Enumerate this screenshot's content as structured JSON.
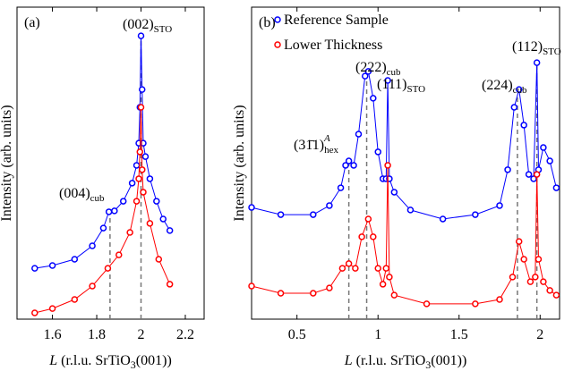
{
  "chart_data": [
    {
      "type": "line",
      "panel_label": "(a)",
      "ylabel": "Intensity (arb. units)",
      "xlabel": {
        "var": "L",
        "text": " (r.l.u. SrTiO",
        "sub": "3",
        "rest": "(001))"
      },
      "xlim": [
        1.44,
        2.285
      ],
      "ylim": [
        0,
        100
      ],
      "xticks": [
        1.6,
        1.8,
        2,
        2.2
      ],
      "series": [
        {
          "color": "#0000ff",
          "x": [
            1.52,
            1.6,
            1.7,
            1.78,
            1.83,
            1.855,
            1.88,
            1.92,
            1.96,
            1.98,
            1.99,
            1.995,
            2.0,
            2.005,
            2.01,
            2.02,
            2.04,
            2.07,
            2.1,
            2.13
          ],
          "values": [
            16.3,
            17.2,
            19.2,
            23.5,
            29.2,
            34.4,
            34.7,
            37.8,
            43.6,
            49.3,
            56.4,
            67.9,
            90.8,
            73.6,
            56.4,
            52.1,
            45,
            37.8,
            32.1,
            28.4
          ]
        },
        {
          "color": "#ff0000",
          "x": [
            1.52,
            1.6,
            1.7,
            1.78,
            1.85,
            1.9,
            1.95,
            1.98,
            1.99,
            1.995,
            2.0,
            2.005,
            2.01,
            2.04,
            2.08,
            2.13
          ],
          "values": [
            2,
            3.4,
            6.3,
            10.6,
            16.3,
            20.6,
            27.8,
            37.8,
            45,
            53.6,
            67.9,
            47.9,
            40.7,
            30.7,
            19.2,
            11.2
          ]
        }
      ],
      "vlines": [
        1.86,
        2.0
      ],
      "annotations": [
        {
          "text": "(002)",
          "sub": "STO"
        },
        {
          "text": "(004)",
          "sub": "cub"
        }
      ]
    },
    {
      "type": "line",
      "panel_label": "(b)",
      "ylabel": "Intensity (arb. units)",
      "xlabel": {
        "var": "L",
        "text": " (r.l.u. SrTiO",
        "sub": "3",
        "rest": "(001))"
      },
      "xlim": [
        0.22,
        2.12
      ],
      "ylim": [
        0,
        100
      ],
      "xticks": [
        0.5,
        1,
        1.5,
        2
      ],
      "legend": "upper left",
      "series": [
        {
          "name": "Reference Sample",
          "color": "#0000ff",
          "x": [
            0.22,
            0.4,
            0.6,
            0.7,
            0.77,
            0.8,
            0.82,
            0.85,
            0.88,
            0.92,
            0.94,
            0.97,
            1.0,
            1.03,
            1.05,
            1.06,
            1.07,
            1.1,
            1.2,
            1.4,
            1.6,
            1.75,
            1.8,
            1.84,
            1.87,
            1.9,
            1.93,
            1.96,
            1.98,
            1.99,
            2.02,
            2.06,
            2.1
          ],
          "values": [
            35.8,
            33.5,
            33.5,
            36.4,
            42.1,
            49.3,
            50.7,
            49.3,
            59.3,
            77.9,
            79.4,
            70.8,
            53.6,
            45,
            45,
            76.5,
            45,
            40.7,
            35,
            32.1,
            33.5,
            36.4,
            47.9,
            67.9,
            73.6,
            62.2,
            46.4,
            45,
            82.2,
            47.9,
            55,
            50.7,
            42.1
          ]
        },
        {
          "name": "Lower Thickness",
          "color": "#ff0000",
          "x": [
            0.22,
            0.4,
            0.6,
            0.7,
            0.78,
            0.82,
            0.86,
            0.9,
            0.94,
            0.97,
            1.0,
            1.03,
            1.05,
            1.06,
            1.07,
            1.1,
            1.3,
            1.6,
            1.75,
            1.83,
            1.87,
            1.9,
            1.94,
            1.97,
            1.98,
            1.99,
            2.02,
            2.06,
            2.1
          ],
          "values": [
            10.6,
            8.3,
            8.3,
            10,
            16.3,
            17.8,
            16.3,
            26.4,
            32.1,
            26.4,
            16.3,
            11.2,
            16.3,
            49.3,
            13.5,
            7.7,
            4.9,
            4.9,
            6.3,
            13.5,
            24.9,
            19.2,
            12,
            13.5,
            46.4,
            19.2,
            12,
            9.2,
            7.7
          ]
        }
      ],
      "vlines": [
        0.82,
        0.93,
        1.86,
        1.98
      ],
      "annotations": [
        {
          "text": "(222)",
          "sub": "cub"
        },
        {
          "text": "(111)",
          "sub": "STO"
        },
        {
          "text": "(31̄1)",
          "sub": "hex",
          "sup": "A"
        },
        {
          "text": "(224)",
          "sub": "cub"
        },
        {
          "text": "(112)",
          "sub": "STO"
        }
      ]
    }
  ]
}
